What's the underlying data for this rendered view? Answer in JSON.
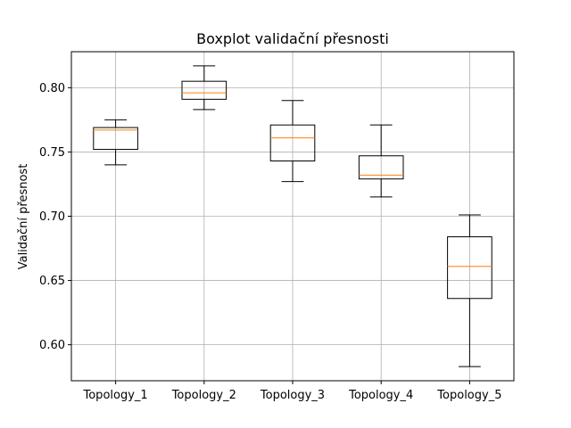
{
  "chart_data": {
    "type": "boxplot",
    "title": "Boxplot validační přesnosti",
    "xlabel": "",
    "ylabel": "Validační přesnost",
    "ylim": [
      0.572,
      0.828
    ],
    "yticks": [
      "0.60",
      "0.65",
      "0.70",
      "0.75",
      "0.80"
    ],
    "grid": true,
    "categories": [
      "Topology_1",
      "Topology_2",
      "Topology_3",
      "Topology_4",
      "Topology_5"
    ],
    "boxes": [
      {
        "min": 0.74,
        "q1": 0.752,
        "median": 0.767,
        "q3": 0.769,
        "max": 0.775
      },
      {
        "min": 0.783,
        "q1": 0.791,
        "median": 0.796,
        "q3": 0.805,
        "max": 0.817
      },
      {
        "min": 0.727,
        "q1": 0.743,
        "median": 0.761,
        "q3": 0.771,
        "max": 0.79
      },
      {
        "min": 0.715,
        "q1": 0.729,
        "median": 0.732,
        "q3": 0.747,
        "max": 0.771
      },
      {
        "min": 0.583,
        "q1": 0.636,
        "median": 0.661,
        "q3": 0.684,
        "max": 0.701
      }
    ],
    "colors": {
      "box": "#000000",
      "median": "#ff7f0e",
      "grid": "#b0b0b0"
    }
  }
}
